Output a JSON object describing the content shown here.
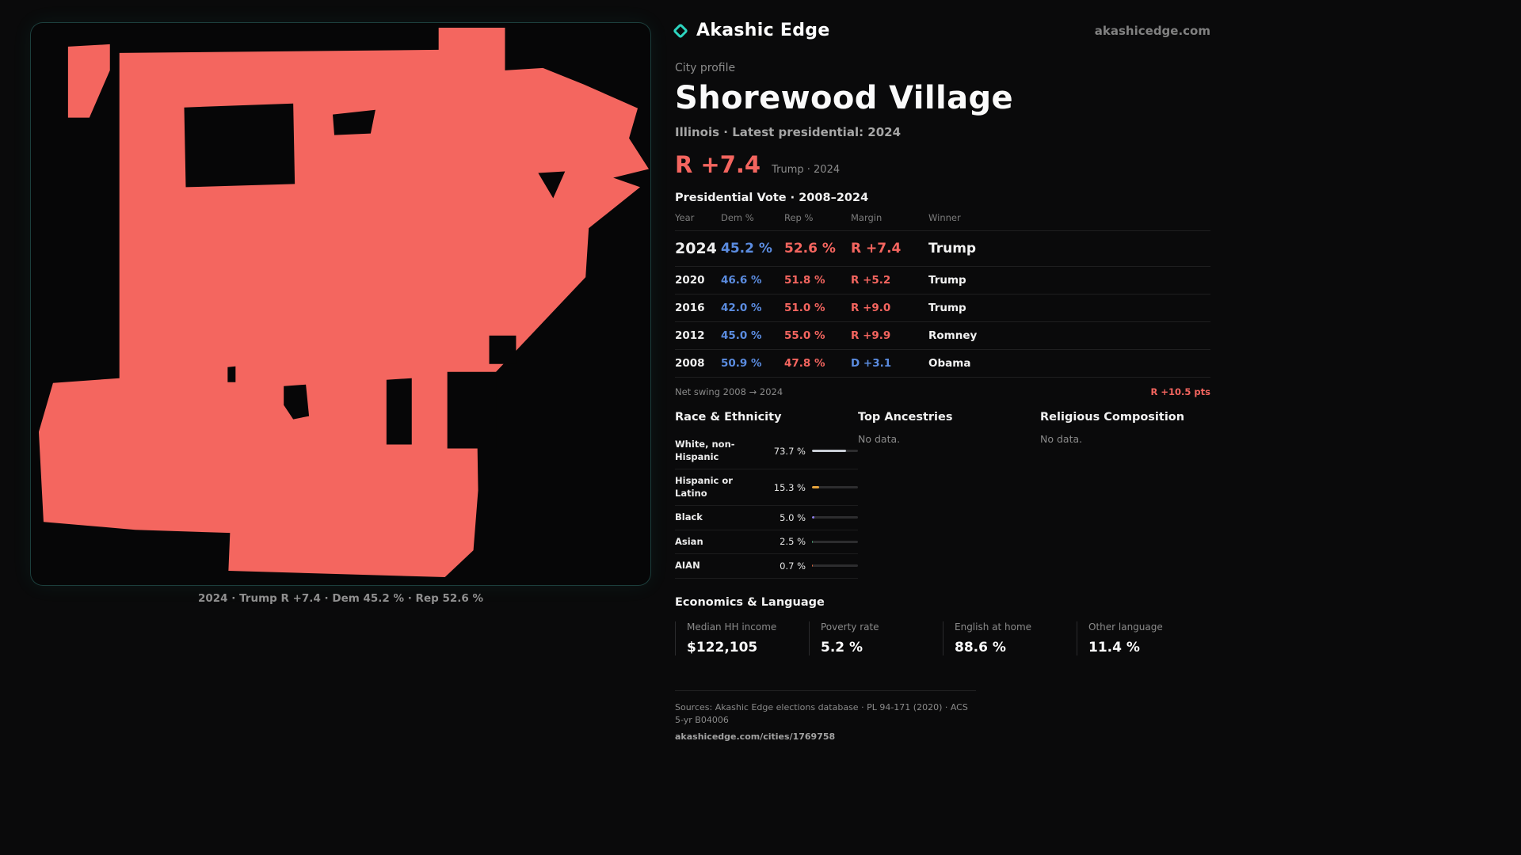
{
  "colors": {
    "accent_teal": "#2dd4bf",
    "rep_red": "#f4655f",
    "dem_blue": "#5b8ce0",
    "map_fill": "#f4665f",
    "background": "#0a0a0b"
  },
  "brand": {
    "name": "Akashic Edge",
    "domain": "akashicedge.com"
  },
  "map": {
    "caption": "2024 · Trump R +7.4 · Dem 45.2 % · Rep 52.6 %"
  },
  "profile": {
    "kicker": "City profile",
    "title": "Shorewood Village",
    "subtitle": "Illinois · Latest presidential: 2024",
    "headline_margin": "R +7.4",
    "headline_context": "Trump · 2024"
  },
  "vote_table": {
    "title": "Presidential Vote · 2008–2024",
    "columns": {
      "year": "Year",
      "dem": "Dem %",
      "rep": "Rep %",
      "margin": "Margin",
      "winner": "Winner"
    },
    "rows": [
      {
        "year": "2024",
        "dem": "45.2 %",
        "rep": "52.6 %",
        "margin": "R +7.4",
        "winner": "Trump",
        "margin_class": "margin-rep",
        "row_class": "highlight"
      },
      {
        "year": "2020",
        "dem": "46.6 %",
        "rep": "51.8 %",
        "margin": "R +5.2",
        "winner": "Trump",
        "margin_class": "margin-rep"
      },
      {
        "year": "2016",
        "dem": "42.0 %",
        "rep": "51.0 %",
        "margin": "R +9.0",
        "winner": "Trump",
        "margin_class": "margin-rep"
      },
      {
        "year": "2012",
        "dem": "45.0 %",
        "rep": "55.0 %",
        "margin": "R +9.9",
        "winner": "Romney",
        "margin_class": "margin-rep"
      },
      {
        "year": "2008",
        "dem": "50.9 %",
        "rep": "47.8 %",
        "margin": "D +3.1",
        "winner": "Obama",
        "margin_class": "margin-dem"
      }
    ],
    "net_swing_label": "Net swing 2008 → 2024",
    "net_swing_value": "R +10.5 pts"
  },
  "demographics": {
    "race": {
      "title": "Race & Ethnicity",
      "rows": [
        {
          "label": "White, non-Hispanic",
          "value": "73.7 %",
          "pct": 73.7,
          "color": "#c9ced6"
        },
        {
          "label": "Hispanic or Latino",
          "value": "15.3 %",
          "pct": 15.3,
          "color": "#e5a33c"
        },
        {
          "label": "Black",
          "value": "5.0 %",
          "pct": 5.0,
          "color": "#8d7de8"
        },
        {
          "label": "Asian",
          "value": "2.5 %",
          "pct": 2.5,
          "color": "#4caf7d"
        },
        {
          "label": "AIAN",
          "value": "0.7 %",
          "pct": 0.7,
          "color": "#e0653a"
        }
      ]
    },
    "ancestries": {
      "title": "Top Ancestries",
      "empty": "No data."
    },
    "religion": {
      "title": "Religious Composition",
      "empty": "No data."
    }
  },
  "economics": {
    "title": "Economics & Language",
    "stats": [
      {
        "label": "Median HH income",
        "value": "$122,105"
      },
      {
        "label": "Poverty rate",
        "value": "5.2 %"
      },
      {
        "label": "English at home",
        "value": "88.6 %"
      },
      {
        "label": "Other language",
        "value": "11.4 %"
      }
    ]
  },
  "footer": {
    "sources": "Sources: Akashic Edge elections database · PL 94-171 (2020) · ACS 5-yr B04006",
    "permalink": "akashicedge.com/cities/1769758"
  }
}
